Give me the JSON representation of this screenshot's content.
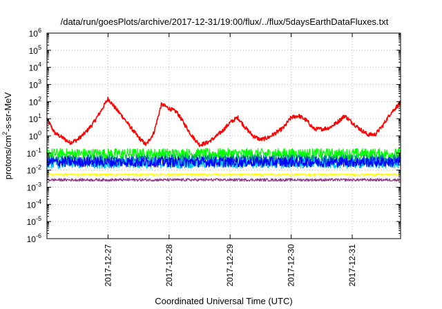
{
  "chart_data": {
    "type": "line",
    "title": "/data/run/goesPlots/archive/2017-12-31/19:00/flux/../flux/5daysEarthDataFluxes.txt",
    "xlabel": "Coordinated Universal Time (UTC)",
    "ylabel_parts": [
      "protons/cm",
      "2",
      "-s-sr-MeV"
    ],
    "yscale": "log",
    "ylim": [
      1e-06,
      1000000.0
    ],
    "xlim": [
      "2017-12-26T00:00",
      "2017-12-31T19:00"
    ],
    "grid": true,
    "legend": "none",
    "y_ticks": [
      {
        "value": 1e-06,
        "base": "10",
        "exp": "-6"
      },
      {
        "value": 1e-05,
        "base": "10",
        "exp": "-5"
      },
      {
        "value": 0.0001,
        "base": "10",
        "exp": "-4"
      },
      {
        "value": 0.001,
        "base": "10",
        "exp": "-3"
      },
      {
        "value": 0.01,
        "base": "10",
        "exp": "-2"
      },
      {
        "value": 0.1,
        "base": "10",
        "exp": "-1"
      },
      {
        "value": 1,
        "base": "10",
        "exp": "0"
      },
      {
        "value": 10,
        "base": "10",
        "exp": "1"
      },
      {
        "value": 100,
        "base": "10",
        "exp": "2"
      },
      {
        "value": 1000,
        "base": "10",
        "exp": "3"
      },
      {
        "value": 10000,
        "base": "10",
        "exp": "4"
      },
      {
        "value": 100000,
        "base": "10",
        "exp": "5"
      },
      {
        "value": 1000000,
        "base": "10",
        "exp": "6"
      }
    ],
    "x_ticks": [
      "2017-12-27",
      "2017-12-28",
      "2017-12-29",
      "2017-12-30",
      "2017-12-31"
    ],
    "series": [
      {
        "color": "#ff0000",
        "kind": "trend",
        "noise": 0.12,
        "x": [
          "2017-12-26T00:00",
          "2017-12-26T03:00",
          "2017-12-26T06:00",
          "2017-12-26T09:00",
          "2017-12-26T12:00",
          "2017-12-26T15:00",
          "2017-12-26T18:00",
          "2017-12-26T21:00",
          "2017-12-27T00:00",
          "2017-12-27T03:00",
          "2017-12-27T06:00",
          "2017-12-27T09:00",
          "2017-12-27T12:00",
          "2017-12-27T15:00",
          "2017-12-27T18:00",
          "2017-12-27T21:00",
          "2017-12-28T00:00",
          "2017-12-28T03:00",
          "2017-12-28T06:00",
          "2017-12-28T09:00",
          "2017-12-28T12:00",
          "2017-12-28T15:00",
          "2017-12-28T18:00",
          "2017-12-28T21:00",
          "2017-12-29T00:00",
          "2017-12-29T03:00",
          "2017-12-29T06:00",
          "2017-12-29T09:00",
          "2017-12-29T12:00",
          "2017-12-29T15:00",
          "2017-12-29T18:00",
          "2017-12-29T21:00",
          "2017-12-30T00:00",
          "2017-12-30T03:00",
          "2017-12-30T06:00",
          "2017-12-30T09:00",
          "2017-12-30T12:00",
          "2017-12-30T15:00",
          "2017-12-30T18:00",
          "2017-12-30T21:00",
          "2017-12-31T00:00",
          "2017-12-31T03:00",
          "2017-12-31T06:00",
          "2017-12-31T09:00",
          "2017-12-31T12:00",
          "2017-12-31T15:00",
          "2017-12-31T19:00"
        ],
        "y": [
          10,
          1.5,
          0.8,
          0.4,
          0.6,
          1.5,
          5,
          25,
          150,
          40,
          12,
          3,
          0.8,
          0.3,
          1.5,
          70,
          40,
          25,
          5,
          1,
          0.3,
          0.4,
          0.8,
          2,
          6,
          12,
          3,
          1,
          0.6,
          0.8,
          1.5,
          3,
          12,
          15,
          8,
          2.5,
          2.5,
          3,
          6,
          15,
          6,
          2.5,
          1.2,
          1.2,
          4,
          20,
          90
        ]
      },
      {
        "color": "#00ff00",
        "kind": "band",
        "level": 0.09,
        "noise": 0.32
      },
      {
        "color": "#008b8b",
        "kind": "band",
        "level": 0.04,
        "noise": 0.3
      },
      {
        "color": "#00c0ff",
        "kind": "band",
        "level": 0.025,
        "noise": 0.3
      },
      {
        "color": "#0000ff",
        "kind": "band",
        "level": 0.03,
        "noise": 0.3
      },
      {
        "color": "#ffff00",
        "kind": "band",
        "level": 0.0055,
        "noise": 0.06
      },
      {
        "color": "#8b3a8b",
        "kind": "band",
        "level": 0.0027,
        "noise": 0.08
      }
    ]
  }
}
